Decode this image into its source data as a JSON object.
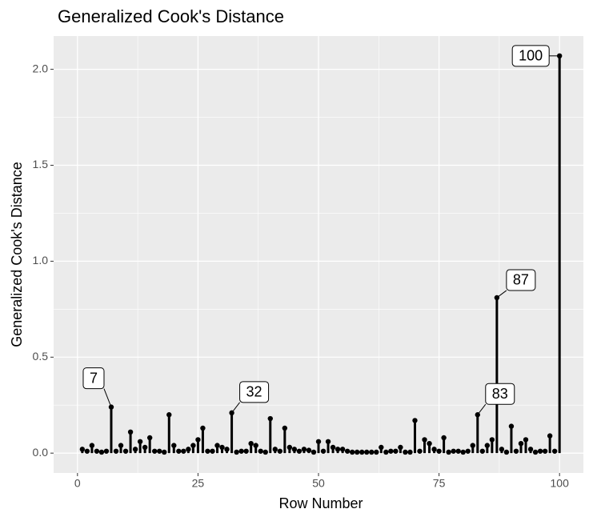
{
  "chart_data": {
    "type": "lollipop",
    "title": "Generalized Cook's Distance",
    "x_label": "Row Number",
    "y_label": "Generalized Cook's Distance",
    "x": [
      1,
      2,
      3,
      4,
      5,
      6,
      7,
      8,
      9,
      10,
      11,
      12,
      13,
      14,
      15,
      16,
      17,
      18,
      19,
      20,
      21,
      22,
      23,
      24,
      25,
      26,
      27,
      28,
      29,
      30,
      31,
      32,
      33,
      34,
      35,
      36,
      37,
      38,
      39,
      40,
      41,
      42,
      43,
      44,
      45,
      46,
      47,
      48,
      49,
      50,
      51,
      52,
      53,
      54,
      55,
      56,
      57,
      58,
      59,
      60,
      61,
      62,
      63,
      64,
      65,
      66,
      67,
      68,
      69,
      70,
      71,
      72,
      73,
      74,
      75,
      76,
      77,
      78,
      79,
      80,
      81,
      82,
      83,
      84,
      85,
      86,
      87,
      88,
      89,
      90,
      91,
      92,
      93,
      94,
      95,
      96,
      97,
      98,
      99,
      100
    ],
    "values": [
      0.02,
      0.01,
      0.04,
      0.01,
      0.005,
      0.01,
      0.24,
      0.01,
      0.04,
      0.01,
      0.11,
      0.02,
      0.06,
      0.03,
      0.08,
      0.01,
      0.01,
      0.005,
      0.2,
      0.04,
      0.01,
      0.01,
      0.02,
      0.04,
      0.07,
      0.13,
      0.01,
      0.01,
      0.04,
      0.03,
      0.02,
      0.21,
      0.005,
      0.01,
      0.01,
      0.05,
      0.04,
      0.01,
      0.005,
      0.18,
      0.02,
      0.01,
      0.13,
      0.03,
      0.02,
      0.01,
      0.02,
      0.015,
      0.005,
      0.06,
      0.01,
      0.06,
      0.03,
      0.02,
      0.02,
      0.01,
      0.005,
      0.005,
      0.005,
      0.005,
      0.005,
      0.005,
      0.03,
      0.005,
      0.01,
      0.01,
      0.03,
      0.005,
      0.005,
      0.17,
      0.01,
      0.07,
      0.05,
      0.02,
      0.01,
      0.08,
      0.005,
      0.01,
      0.01,
      0.005,
      0.01,
      0.04,
      0.2,
      0.01,
      0.04,
      0.07,
      0.81,
      0.02,
      0.005,
      0.14,
      0.01,
      0.05,
      0.07,
      0.02,
      0.005,
      0.01,
      0.01,
      0.09,
      0.01,
      2.07
    ],
    "color": "#000000",
    "labeled_points": [
      {
        "x": 7,
        "label": "7"
      },
      {
        "x": 32,
        "label": "32"
      },
      {
        "x": 83,
        "label": "83"
      },
      {
        "x": 87,
        "label": "87"
      },
      {
        "x": 100,
        "label": "100"
      }
    ],
    "xlim": [
      -4.95,
      104.95
    ],
    "xticks": [
      0,
      25,
      50,
      75,
      100
    ],
    "ylim": [
      -0.1035,
      2.1735
    ],
    "yticks": [
      {
        "value": 0,
        "label": "0.0"
      },
      0.5,
      {
        "value": 1,
        "label": "1.0"
      },
      1.5,
      {
        "value": 2,
        "label": "2.0"
      }
    ],
    "grid": true
  }
}
